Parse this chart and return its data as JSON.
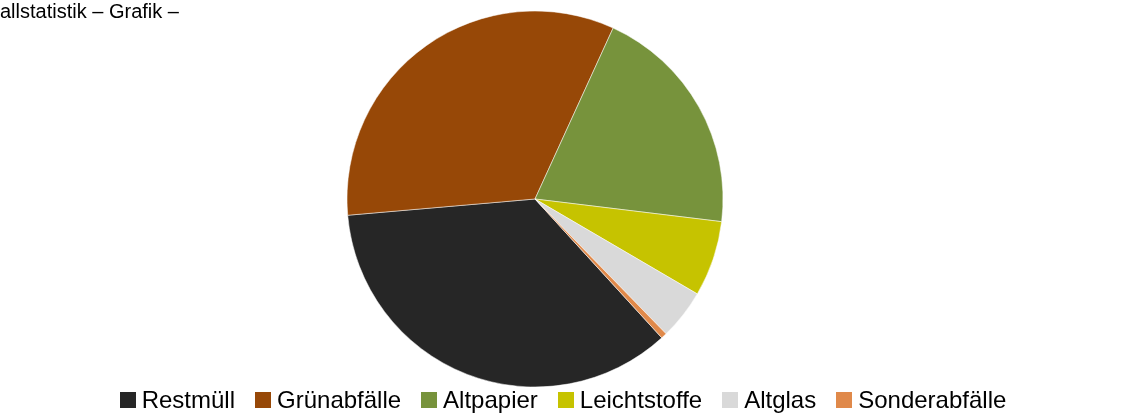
{
  "chart_data": {
    "type": "pie",
    "title": "allstatistik – Grafik –",
    "categories": [
      "Restmüll",
      "Grünabfälle",
      "Altpapier",
      "Leichtstoffe",
      "Altglas",
      "Sonderabfälle"
    ],
    "values": [
      35.4,
      33.2,
      20.1,
      6.5,
      4.3,
      0.5
    ],
    "colors": [
      "#262626",
      "#974807",
      "#77933c",
      "#c6c300",
      "#d9d9d9",
      "#e0894a"
    ],
    "legend": "bottom"
  }
}
